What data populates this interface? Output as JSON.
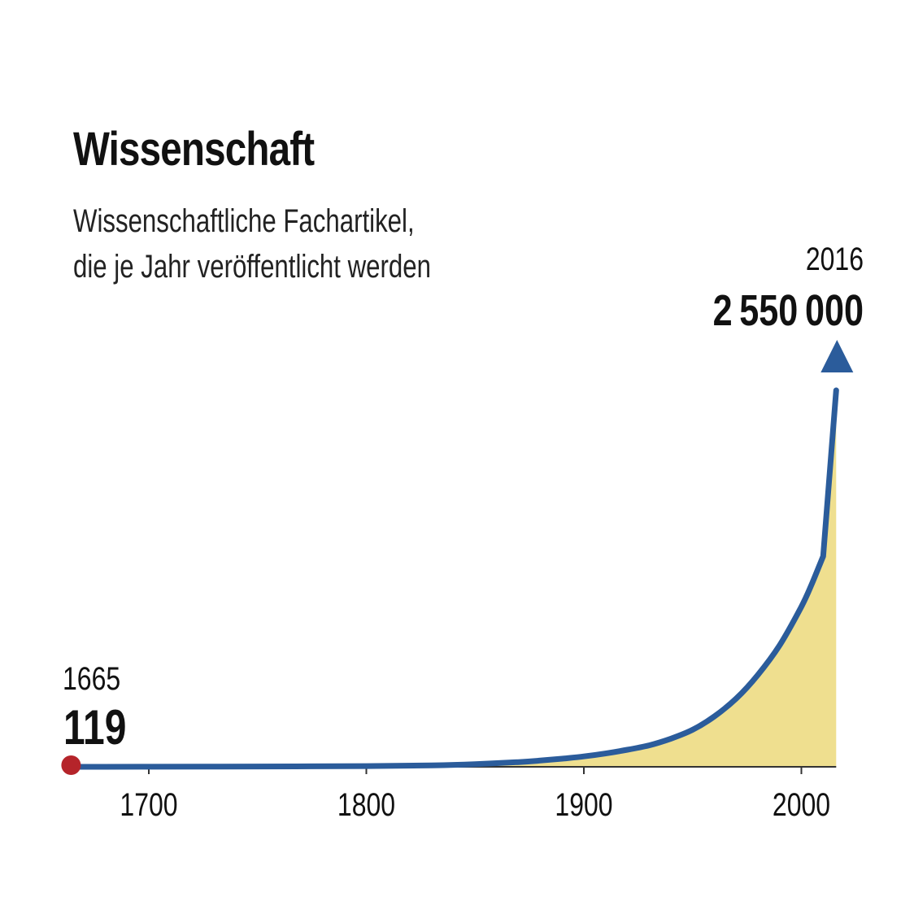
{
  "header": {
    "title": "Wissenschaft",
    "subtitle_lines": [
      "Wissenschaftliche Fachartikel,",
      "die je Jahr veröffentlicht werden"
    ]
  },
  "colors": {
    "line": "#2b5c9b",
    "fill": "#efdf8f",
    "start_dot": "#b5242a",
    "axis": "#333333",
    "text": "#111111"
  },
  "chart_data": {
    "type": "area",
    "title": "Wissenschaft",
    "subtitle": "Wissenschaftliche Fachartikel, die je Jahr veröffentlicht werden",
    "xlabel": "",
    "ylabel": "",
    "xlim": [
      1665,
      2016
    ],
    "ylim": [
      0,
      2550000
    ],
    "x_ticks": [
      1700,
      1800,
      1900,
      2000
    ],
    "grid": false,
    "series": [
      {
        "x": [
          1665,
          1700,
          1750,
          1800,
          1830,
          1850,
          1870,
          1880,
          1890,
          1900,
          1910,
          1920,
          1930,
          1940,
          1950,
          1960,
          1970,
          1980,
          1990,
          2000,
          2005,
          2010,
          2016
        ],
        "y": [
          119,
          600,
          2000,
          5000,
          10000,
          18000,
          32000,
          42000,
          55000,
          70000,
          90000,
          115000,
          145000,
          190000,
          250000,
          340000,
          460000,
          620000,
          820000,
          1080000,
          1240000,
          1420000,
          2550000
        ]
      }
    ],
    "annotations": [
      {
        "year": "1665",
        "value": "119"
      },
      {
        "year": "2016",
        "value": "2550000"
      }
    ]
  }
}
